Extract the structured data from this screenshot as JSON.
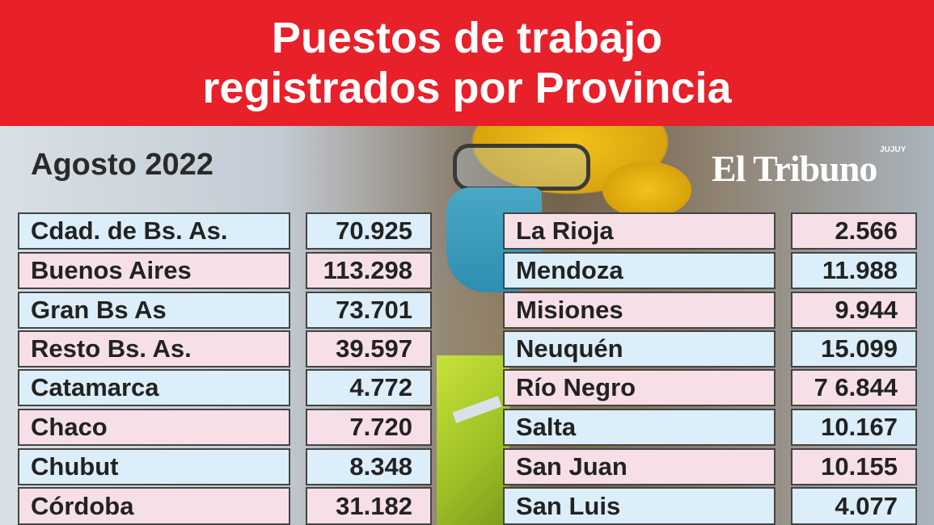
{
  "title": {
    "line1": "Puestos de trabajo",
    "line2": "registrados por Provincia"
  },
  "subtitle": "Agosto 2022",
  "brand": {
    "name": "El Tribuno",
    "edition": "JUJUY"
  },
  "colors": {
    "header_bg": "#e8202a",
    "row_blue": "#dbeefa",
    "row_pink": "#f7dfe8"
  },
  "table_left": [
    {
      "province": "Cdad. de Bs. As.",
      "value": "70.925"
    },
    {
      "province": "Buenos Aires",
      "value": "113.298"
    },
    {
      "province": "Gran Bs As",
      "value": "73.701"
    },
    {
      "province": "Resto Bs. As.",
      "value": "39.597"
    },
    {
      "province": "Catamarca",
      "value": "4.772"
    },
    {
      "province": "Chaco",
      "value": "7.720"
    },
    {
      "province": "Chubut",
      "value": "8.348"
    },
    {
      "province": "Córdoba",
      "value": "31.182"
    }
  ],
  "table_right": [
    {
      "province": "La Rioja",
      "value": "2.566"
    },
    {
      "province": "Mendoza",
      "value": "11.988"
    },
    {
      "province": "Misiones",
      "value": "9.944"
    },
    {
      "province": "Neuquén",
      "value": "15.099"
    },
    {
      "province": "Río Negro",
      "value": "7 6.844"
    },
    {
      "province": "Salta",
      "value": "10.167"
    },
    {
      "province": "San Juan",
      "value": "10.155"
    },
    {
      "province": "San Luis",
      "value": "4.077"
    }
  ]
}
